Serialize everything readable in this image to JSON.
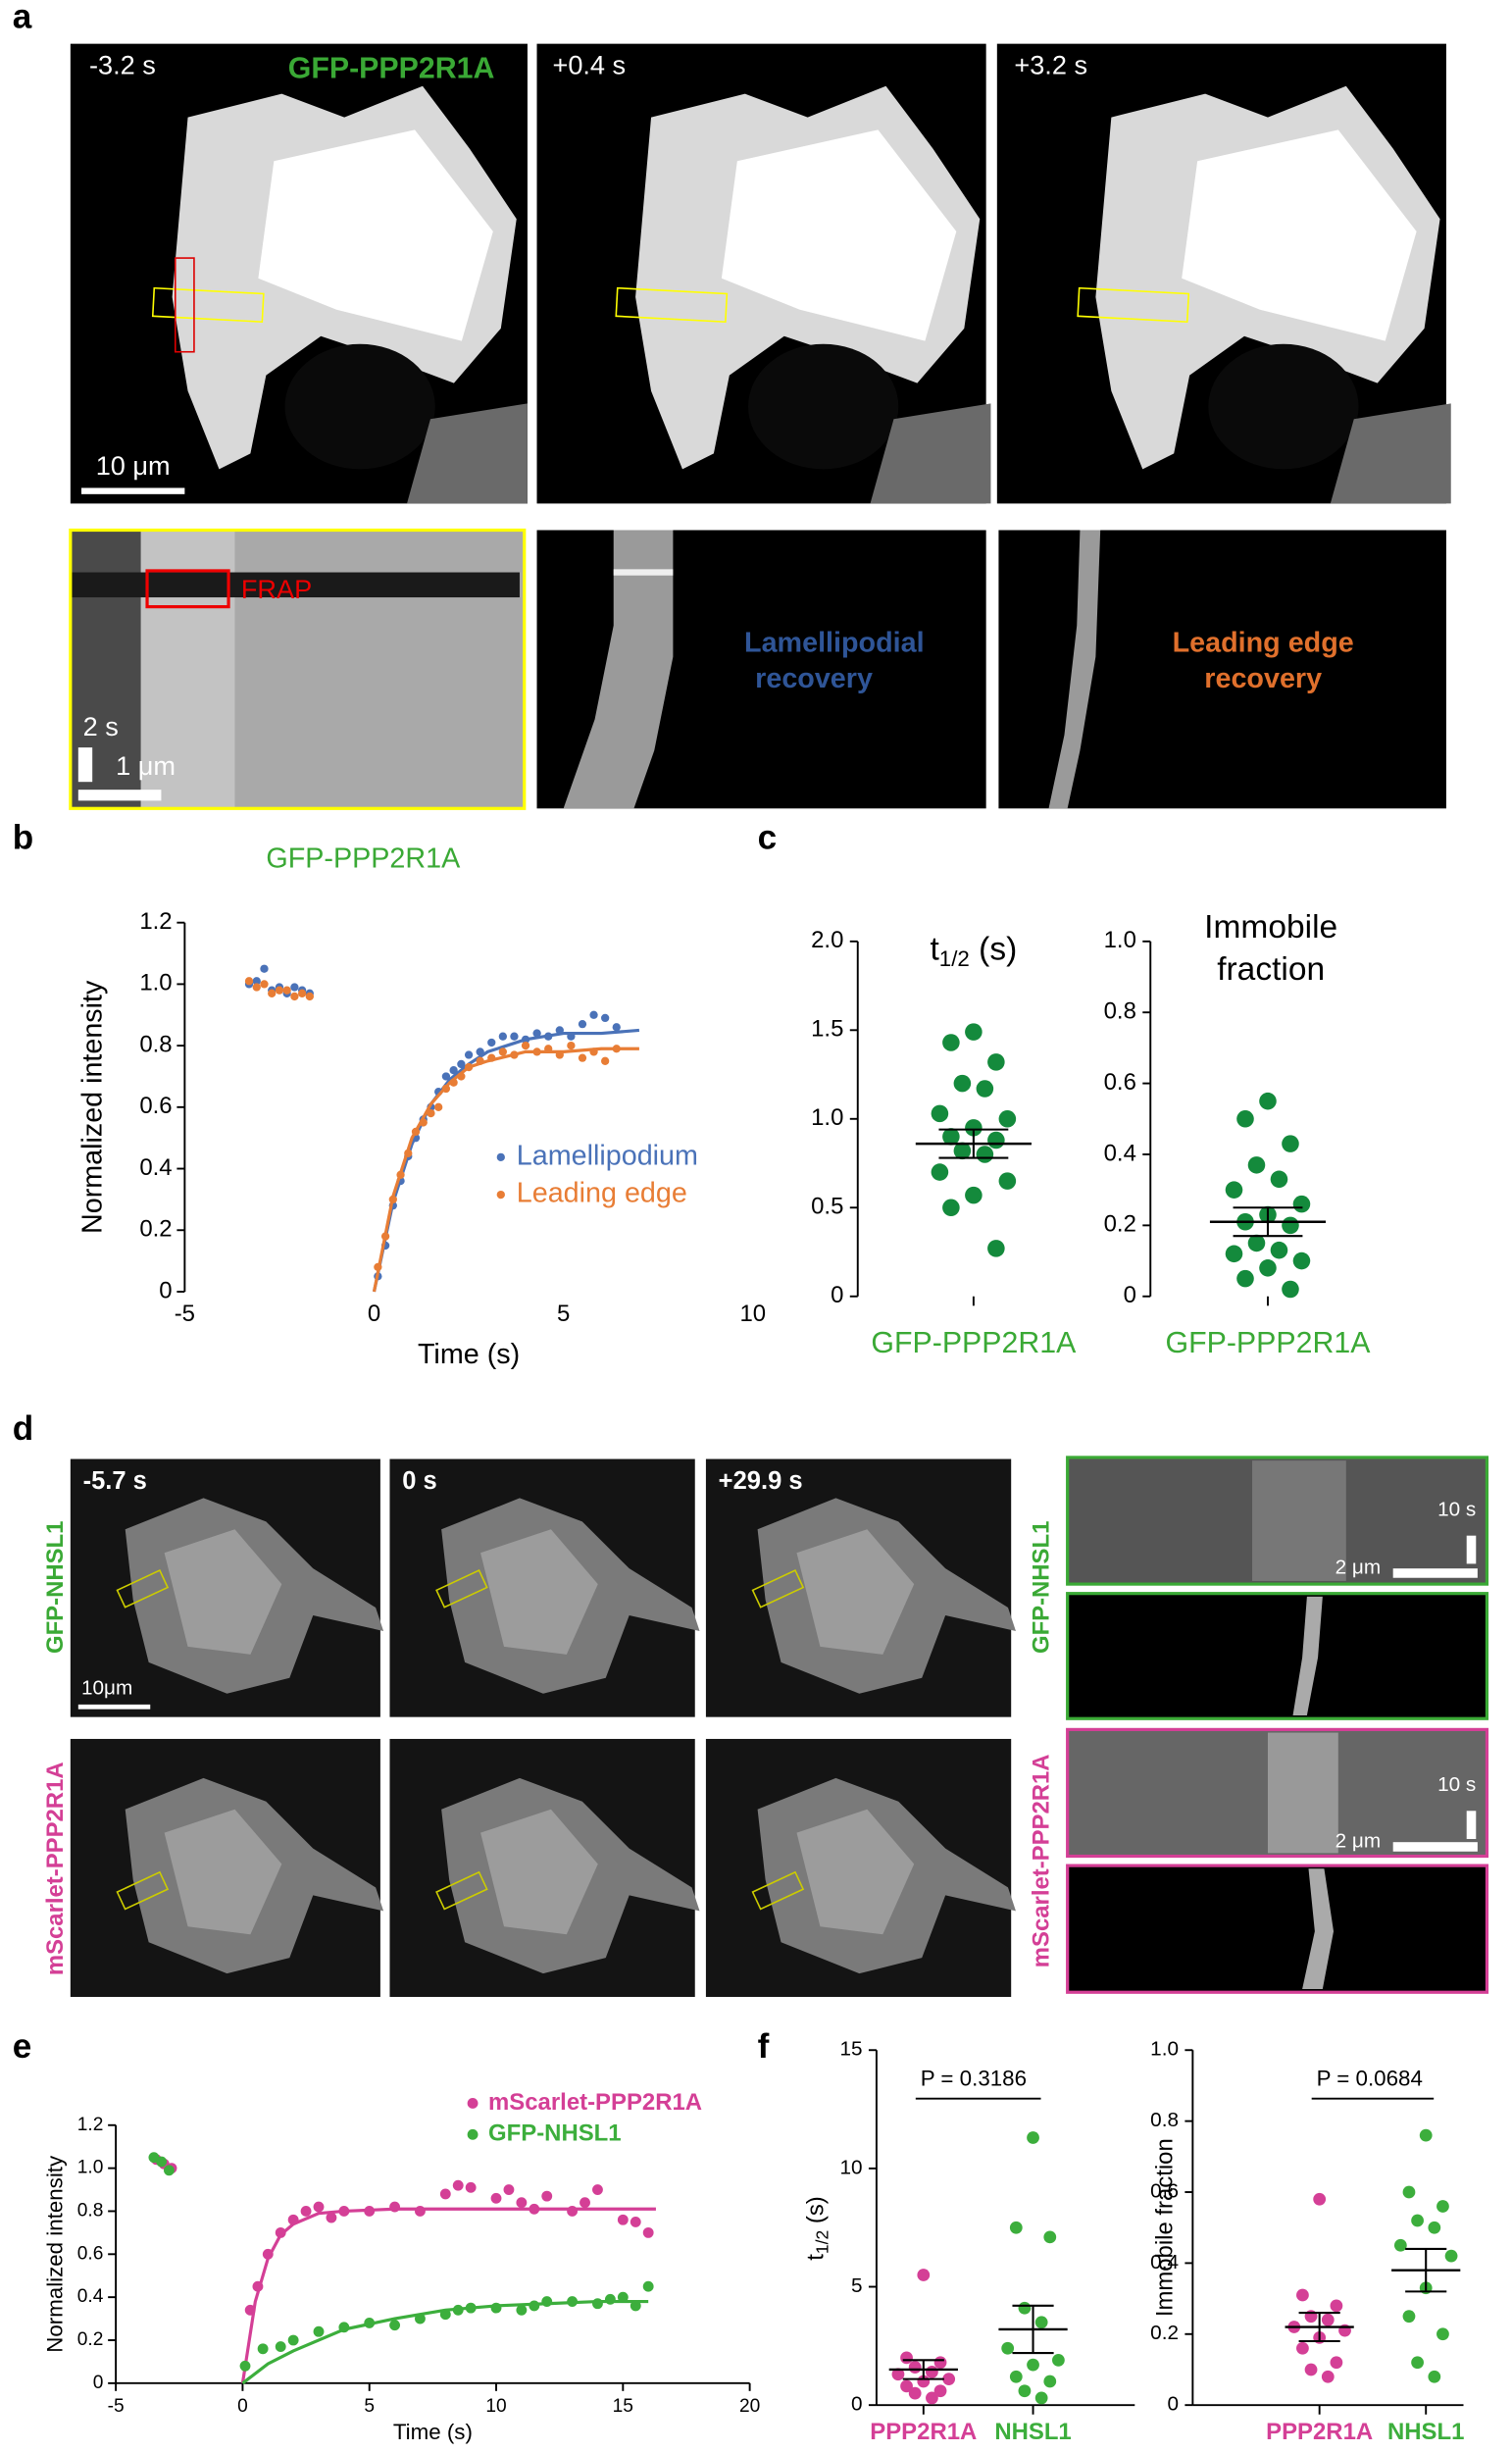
{
  "panel_letters": [
    "a",
    "b",
    "c",
    "d",
    "e",
    "f"
  ],
  "panel_a": {
    "times": [
      "-3.2 s",
      "+0.4 s",
      "+3.2 s"
    ],
    "protein": "GFP-PPP2R1A",
    "scale_bar": "10 μm",
    "frap": "FRAP",
    "kymo_labels": [
      [
        "Lamellipodial",
        "recovery"
      ],
      [
        "Leading edge",
        "recovery"
      ]
    ],
    "kymo_time_bar": "2 s",
    "kymo_space_bar": "1 μm"
  },
  "panel_d": {
    "times": [
      "-5.7 s",
      "0 s",
      "+29.9 s"
    ],
    "rows": [
      "GFP-NHSL1",
      "mScarlet-PPP2R1A"
    ],
    "scale_bar": "10μm",
    "kymo_time_bar": "10 s",
    "kymo_space_bar": "2 μm"
  },
  "chart_data": [
    {
      "type": "scatter",
      "title": "GFP-PPP2R1A",
      "xlabel": "Time (s)",
      "ylabel": "Normalized intensity",
      "xlim": [
        -5,
        10
      ],
      "ylim": [
        0,
        1.2
      ],
      "xticks": [
        -5,
        0,
        5,
        10
      ],
      "yticks": [
        0,
        0.2,
        0.4,
        0.6,
        0.8,
        {
          "value": 1,
          "label": "1.0"
        },
        1.2
      ],
      "series": [
        {
          "name": "Lamellipodium",
          "color": "#4a72b8",
          "x": [
            -3.3,
            -3.1,
            -2.9,
            -2.7,
            -2.5,
            -2.3,
            -2.1,
            -1.9,
            -1.7,
            0.1,
            0.3,
            0.5,
            0.7,
            0.9,
            1.1,
            1.3,
            1.5,
            1.7,
            1.9,
            2.1,
            2.3,
            2.5,
            2.8,
            3.1,
            3.4,
            3.7,
            4.0,
            4.3,
            4.6,
            4.9,
            5.2,
            5.5,
            5.8,
            6.1,
            6.4
          ],
          "values": [
            1.0,
            1.01,
            1.05,
            0.98,
            0.99,
            0.97,
            0.99,
            0.98,
            0.97,
            0.05,
            0.15,
            0.28,
            0.36,
            0.44,
            0.5,
            0.56,
            0.6,
            0.65,
            0.7,
            0.72,
            0.74,
            0.77,
            0.78,
            0.81,
            0.83,
            0.83,
            0.82,
            0.84,
            0.83,
            0.85,
            0.83,
            0.87,
            0.9,
            0.89,
            0.86
          ],
          "fit_x": [
            0,
            0.5,
            1,
            1.5,
            2,
            2.5,
            3,
            4,
            5,
            6,
            7
          ],
          "fit_values": [
            0,
            0.29,
            0.48,
            0.61,
            0.69,
            0.74,
            0.78,
            0.82,
            0.84,
            0.84,
            0.85
          ]
        },
        {
          "name": "Leading edge",
          "color": "#e87d35",
          "x": [
            -3.3,
            -3.1,
            -2.9,
            -2.7,
            -2.5,
            -2.3,
            -2.1,
            -1.9,
            -1.7,
            0.1,
            0.3,
            0.5,
            0.7,
            0.9,
            1.1,
            1.3,
            1.5,
            1.7,
            1.9,
            2.1,
            2.3,
            2.5,
            2.8,
            3.1,
            3.4,
            3.7,
            4.0,
            4.3,
            4.6,
            4.9,
            5.2,
            5.5,
            5.8,
            6.1,
            6.4
          ],
          "values": [
            1.01,
            0.99,
            1.0,
            0.97,
            0.98,
            0.98,
            0.96,
            0.97,
            0.96,
            0.08,
            0.18,
            0.3,
            0.38,
            0.45,
            0.52,
            0.55,
            0.58,
            0.6,
            0.66,
            0.68,
            0.7,
            0.73,
            0.75,
            0.76,
            0.78,
            0.77,
            0.8,
            0.78,
            0.79,
            0.77,
            0.8,
            0.76,
            0.78,
            0.75,
            0.79
          ],
          "fit_x": [
            0,
            0.5,
            1,
            1.5,
            2,
            2.5,
            3,
            4,
            5,
            6,
            7
          ],
          "fit_values": [
            0,
            0.31,
            0.5,
            0.61,
            0.68,
            0.73,
            0.75,
            0.78,
            0.78,
            0.79,
            0.79
          ]
        }
      ]
    },
    {
      "type": "strip",
      "title": [
        "t",
        "1/2",
        " (s)"
      ],
      "ylim": [
        0,
        2
      ],
      "yticks": [
        0,
        0.5,
        {
          "value": 1,
          "label": "1.0"
        },
        1.5,
        {
          "value": 2,
          "label": "2.0"
        }
      ],
      "groups": [
        {
          "label": "GFP-PPP2R1A",
          "color": "#148a3c",
          "label_color": "#3aa935",
          "values": [
            1.49,
            1.43,
            1.32,
            1.2,
            1.17,
            1.03,
            1.0,
            0.95,
            0.9,
            0.88,
            0.82,
            0.8,
            0.7,
            0.65,
            0.57,
            0.5,
            0.27
          ],
          "mean": 0.86,
          "sem": 0.08
        }
      ]
    },
    {
      "type": "strip",
      "title": [
        "Immobile",
        "fraction"
      ],
      "ylim": [
        0,
        1
      ],
      "yticks": [
        0,
        0.2,
        0.4,
        0.6,
        0.8,
        {
          "value": 1,
          "label": "1.0"
        }
      ],
      "groups": [
        {
          "label": "GFP-PPP2R1A",
          "color": "#148a3c",
          "label_color": "#3aa935",
          "values": [
            0.55,
            0.5,
            0.43,
            0.37,
            0.33,
            0.3,
            0.26,
            0.23,
            0.21,
            0.2,
            0.15,
            0.13,
            0.12,
            0.1,
            0.08,
            0.05,
            0.02
          ],
          "mean": 0.21,
          "sem": 0.04
        }
      ]
    },
    {
      "type": "scatter",
      "xlabel": "Time (s)",
      "ylabel": "Normalized intensity",
      "xlim": [
        -5,
        20
      ],
      "ylim": [
        0,
        1.2
      ],
      "xticks": [
        -5,
        0,
        5,
        10,
        15,
        20
      ],
      "yticks": [
        0,
        0.2,
        0.4,
        0.6,
        0.8,
        {
          "value": 1,
          "label": "1.0"
        },
        1.2
      ],
      "series": [
        {
          "name": "mScarlet-PPP2R1A",
          "color": "#d43f96",
          "x": [
            -3.4,
            -3.1,
            -2.8,
            0.3,
            0.6,
            1,
            1.5,
            2,
            2.5,
            3,
            3.5,
            4,
            5,
            6,
            7,
            8,
            8.5,
            9,
            10,
            10.5,
            11,
            11.5,
            12,
            13,
            13.5,
            14,
            15,
            15.5,
            16
          ],
          "values": [
            1.04,
            1.02,
            1.0,
            0.34,
            0.45,
            0.6,
            0.7,
            0.76,
            0.8,
            0.82,
            0.77,
            0.8,
            0.8,
            0.82,
            0.8,
            0.88,
            0.92,
            0.91,
            0.86,
            0.9,
            0.84,
            0.81,
            0.87,
            0.8,
            0.84,
            0.9,
            0.76,
            0.75,
            0.7
          ],
          "fit_x": [
            0,
            0.5,
            1,
            1.5,
            2,
            3,
            4,
            6,
            8,
            12,
            16.3
          ],
          "fit_values": [
            0,
            0.38,
            0.58,
            0.69,
            0.74,
            0.79,
            0.8,
            0.81,
            0.81,
            0.81,
            0.81
          ]
        },
        {
          "name": "GFP-NHSL1",
          "color": "#3cae3c",
          "x": [
            -3.5,
            -3.2,
            -2.9,
            0.1,
            0.8,
            1.5,
            2,
            3,
            4,
            5,
            6,
            7,
            8,
            8.5,
            9,
            10,
            11,
            11.5,
            12,
            13,
            14,
            14.5,
            15,
            15.5,
            16
          ],
          "values": [
            1.05,
            1.03,
            0.99,
            0.08,
            0.16,
            0.17,
            0.2,
            0.24,
            0.26,
            0.28,
            0.27,
            0.3,
            0.32,
            0.34,
            0.35,
            0.35,
            0.34,
            0.36,
            0.38,
            0.38,
            0.37,
            0.39,
            0.4,
            0.36,
            0.45
          ],
          "fit_x": [
            0,
            1,
            2,
            4,
            6,
            8,
            10,
            12,
            14,
            16
          ],
          "fit_values": [
            0,
            0.09,
            0.15,
            0.25,
            0.3,
            0.34,
            0.36,
            0.37,
            0.38,
            0.38
          ]
        }
      ]
    },
    {
      "type": "strip",
      "ylabel": [
        "t",
        "1/2",
        " (s)"
      ],
      "annotation": "P = 0.3186",
      "ylim": [
        0,
        15
      ],
      "yticks": [
        0,
        5,
        10,
        15
      ],
      "groups": [
        {
          "label": "PPP2R1A",
          "color": "#d43f96",
          "label_color": "#d43f96",
          "values": [
            5.5,
            2.0,
            1.8,
            1.6,
            1.4,
            1.3,
            1.1,
            1.0,
            0.8,
            0.6,
            0.5,
            0.3
          ],
          "mean": 1.5,
          "sem": 0.4
        },
        {
          "label": "NHSL1",
          "color": "#3cae3c",
          "label_color": "#3cae3c",
          "values": [
            11.3,
            7.5,
            7.1,
            4.1,
            3.5,
            2.4,
            1.9,
            1.7,
            1.2,
            1.0,
            0.6,
            0.3
          ],
          "mean": 3.2,
          "sem": 1.0
        }
      ]
    },
    {
      "type": "strip",
      "ylabel": "Immobile fraction",
      "annotation": "P = 0.0684",
      "ylim": [
        0,
        1
      ],
      "yticks": [
        0,
        0.2,
        0.4,
        0.6,
        0.8,
        {
          "value": 1,
          "label": "1.0"
        }
      ],
      "groups": [
        {
          "label": "PPP2R1A",
          "color": "#d43f96",
          "label_color": "#d43f96",
          "values": [
            0.58,
            0.31,
            0.28,
            0.25,
            0.24,
            0.22,
            0.21,
            0.19,
            0.16,
            0.12,
            0.1,
            0.08
          ],
          "mean": 0.22,
          "sem": 0.04
        },
        {
          "label": "NHSL1",
          "color": "#3cae3c",
          "label_color": "#3cae3c",
          "values": [
            0.76,
            0.6,
            0.56,
            0.52,
            0.5,
            0.45,
            0.42,
            0.33,
            0.25,
            0.2,
            0.12,
            0.08
          ],
          "mean": 0.38,
          "sem": 0.06
        }
      ]
    }
  ]
}
